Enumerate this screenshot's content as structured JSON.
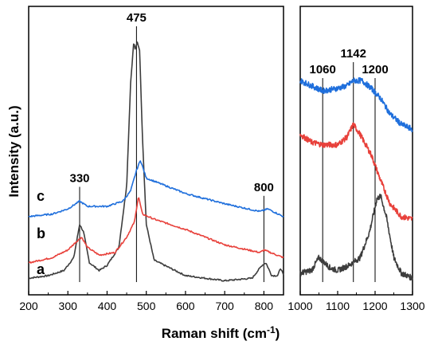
{
  "colors": {
    "a": "#3d3d3d",
    "b": "#e8413b",
    "c": "#1f6fdc",
    "axis": "#000000"
  },
  "chart_data": [
    {
      "type": "line",
      "panel": "left",
      "xlabel": "Raman shift (cm",
      "xlabel_sup": "-1",
      "xlabel_tail": ")",
      "ylabel": "Intensity (a.u.)",
      "xlim": [
        200,
        850
      ],
      "x_ticks": [
        "200",
        "300",
        "400",
        "500",
        "600",
        "700",
        "800"
      ],
      "ylim": [
        0,
        1
      ],
      "peak_lines": [
        {
          "x": 330,
          "label": "330"
        },
        {
          "x": 475,
          "label": "475"
        },
        {
          "x": 800,
          "label": "800"
        }
      ],
      "series": [
        {
          "name": "a",
          "points": [
            [
              200,
              0.04
            ],
            [
              250,
              0.05
            ],
            [
              290,
              0.07
            ],
            [
              315,
              0.12
            ],
            [
              330,
              0.25
            ],
            [
              340,
              0.22
            ],
            [
              355,
              0.1
            ],
            [
              380,
              0.07
            ],
            [
              400,
              0.09
            ],
            [
              430,
              0.16
            ],
            [
              450,
              0.4
            ],
            [
              460,
              0.8
            ],
            [
              468,
              0.96
            ],
            [
              472,
              0.93
            ],
            [
              477,
              0.96
            ],
            [
              483,
              0.93
            ],
            [
              490,
              0.6
            ],
            [
              500,
              0.25
            ],
            [
              520,
              0.11
            ],
            [
              600,
              0.05
            ],
            [
              700,
              0.03
            ],
            [
              770,
              0.04
            ],
            [
              795,
              0.09
            ],
            [
              805,
              0.1
            ],
            [
              820,
              0.05
            ],
            [
              835,
              0.05
            ],
            [
              843,
              0.08
            ],
            [
              850,
              0.05
            ]
          ]
        },
        {
          "name": "b",
          "points": [
            [
              200,
              0.1
            ],
            [
              260,
              0.12
            ],
            [
              300,
              0.15
            ],
            [
              320,
              0.18
            ],
            [
              335,
              0.2
            ],
            [
              350,
              0.16
            ],
            [
              380,
              0.13
            ],
            [
              420,
              0.14
            ],
            [
              450,
              0.2
            ],
            [
              470,
              0.26
            ],
            [
              480,
              0.36
            ],
            [
              490,
              0.29
            ],
            [
              520,
              0.27
            ],
            [
              600,
              0.23
            ],
            [
              700,
              0.17
            ],
            [
              790,
              0.14
            ],
            [
              800,
              0.15
            ],
            [
              850,
              0.12
            ]
          ]
        },
        {
          "name": "c",
          "points": [
            [
              200,
              0.28
            ],
            [
              260,
              0.29
            ],
            [
              300,
              0.31
            ],
            [
              320,
              0.33
            ],
            [
              330,
              0.34
            ],
            [
              350,
              0.32
            ],
            [
              400,
              0.32
            ],
            [
              440,
              0.34
            ],
            [
              460,
              0.38
            ],
            [
              475,
              0.46
            ],
            [
              485,
              0.5
            ],
            [
              500,
              0.43
            ],
            [
              550,
              0.4
            ],
            [
              600,
              0.37
            ],
            [
              700,
              0.33
            ],
            [
              790,
              0.3
            ],
            [
              810,
              0.31
            ],
            [
              850,
              0.28
            ]
          ]
        }
      ],
      "curve_labels": [
        "c",
        "b",
        "a"
      ]
    },
    {
      "type": "line",
      "panel": "right",
      "xlim": [
        1000,
        1300
      ],
      "x_ticks": [
        "1000",
        "1100",
        "1200",
        "1300"
      ],
      "ylim": [
        0,
        1
      ],
      "peak_lines": [
        {
          "x": 1060,
          "label": "1060"
        },
        {
          "x": 1142,
          "label": "1142"
        },
        {
          "x": 1200,
          "label": "1200"
        }
      ],
      "series": [
        {
          "name": "a",
          "points": [
            [
              1000,
              0.06
            ],
            [
              1030,
              0.07
            ],
            [
              1050,
              0.12
            ],
            [
              1065,
              0.1
            ],
            [
              1080,
              0.08
            ],
            [
              1100,
              0.07
            ],
            [
              1130,
              0.09
            ],
            [
              1160,
              0.12
            ],
            [
              1185,
              0.22
            ],
            [
              1205,
              0.35
            ],
            [
              1215,
              0.36
            ],
            [
              1230,
              0.28
            ],
            [
              1250,
              0.12
            ],
            [
              1270,
              0.06
            ],
            [
              1300,
              0.04
            ]
          ]
        },
        {
          "name": "b",
          "points": [
            [
              1000,
              0.6
            ],
            [
              1030,
              0.57
            ],
            [
              1060,
              0.56
            ],
            [
              1100,
              0.56
            ],
            [
              1125,
              0.59
            ],
            [
              1142,
              0.64
            ],
            [
              1160,
              0.6
            ],
            [
              1190,
              0.52
            ],
            [
              1215,
              0.42
            ],
            [
              1240,
              0.33
            ],
            [
              1270,
              0.28
            ],
            [
              1300,
              0.27
            ]
          ]
        },
        {
          "name": "c",
          "points": [
            [
              1000,
              0.81
            ],
            [
              1030,
              0.79
            ],
            [
              1060,
              0.77
            ],
            [
              1100,
              0.78
            ],
            [
              1125,
              0.79
            ],
            [
              1142,
              0.81
            ],
            [
              1165,
              0.81
            ],
            [
              1190,
              0.78
            ],
            [
              1215,
              0.74
            ],
            [
              1240,
              0.68
            ],
            [
              1270,
              0.64
            ],
            [
              1300,
              0.62
            ]
          ]
        }
      ]
    }
  ]
}
